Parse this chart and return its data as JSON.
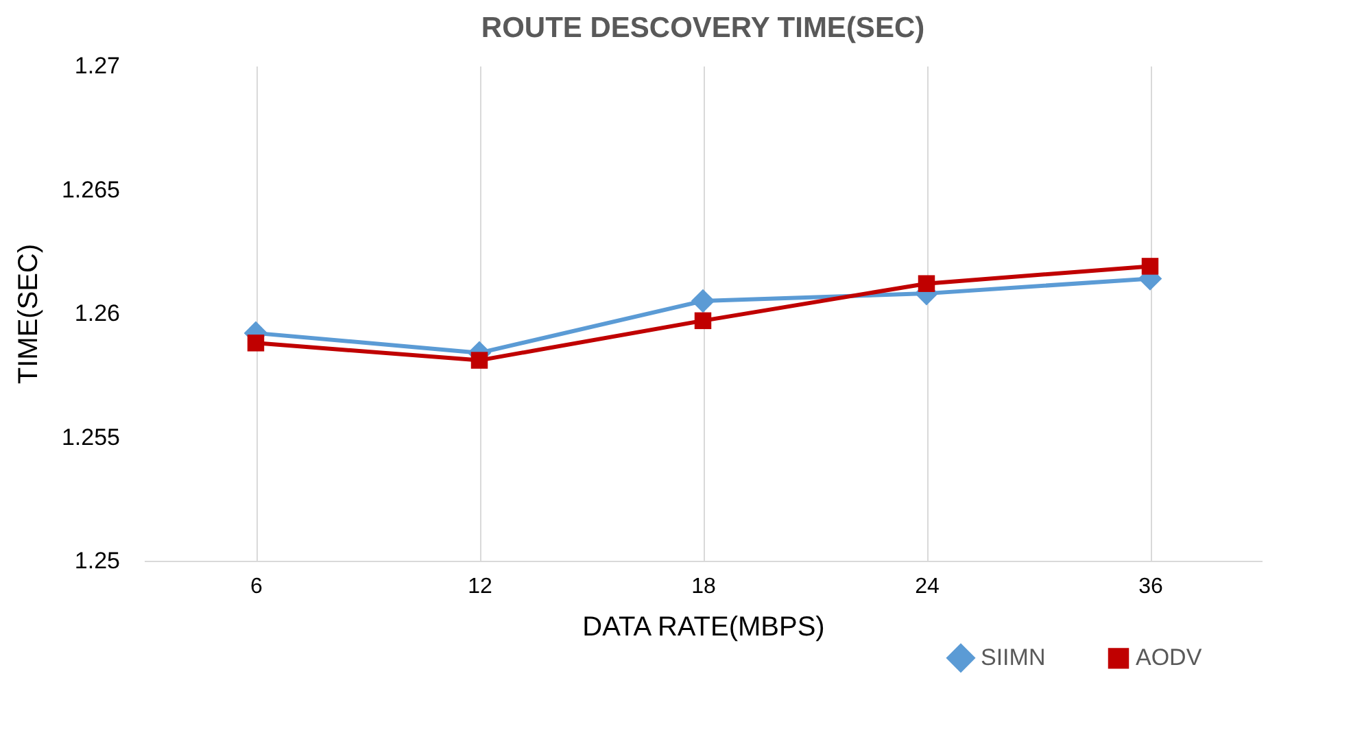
{
  "chart_data": {
    "type": "line",
    "title": "ROUTE DESCOVERY TIME(SEC)",
    "xlabel": "DATA RATE(MBPS)",
    "ylabel": "TIME(SEC)",
    "categories": [
      "6",
      "12",
      "18",
      "24",
      "36"
    ],
    "series": [
      {
        "name": "SIIMN",
        "color": "#5b9bd5",
        "marker": "diamond",
        "values": [
          1.2592,
          1.2584,
          1.2605,
          1.2608,
          1.2614
        ]
      },
      {
        "name": "AODV",
        "color": "#c00000",
        "marker": "square",
        "values": [
          1.2588,
          1.2581,
          1.2597,
          1.2612,
          1.2619
        ]
      }
    ],
    "ylim": [
      1.25,
      1.27
    ],
    "yticks": [
      1.25,
      1.255,
      1.26,
      1.265,
      1.27
    ],
    "grid": "x",
    "legend": "bottom right"
  }
}
